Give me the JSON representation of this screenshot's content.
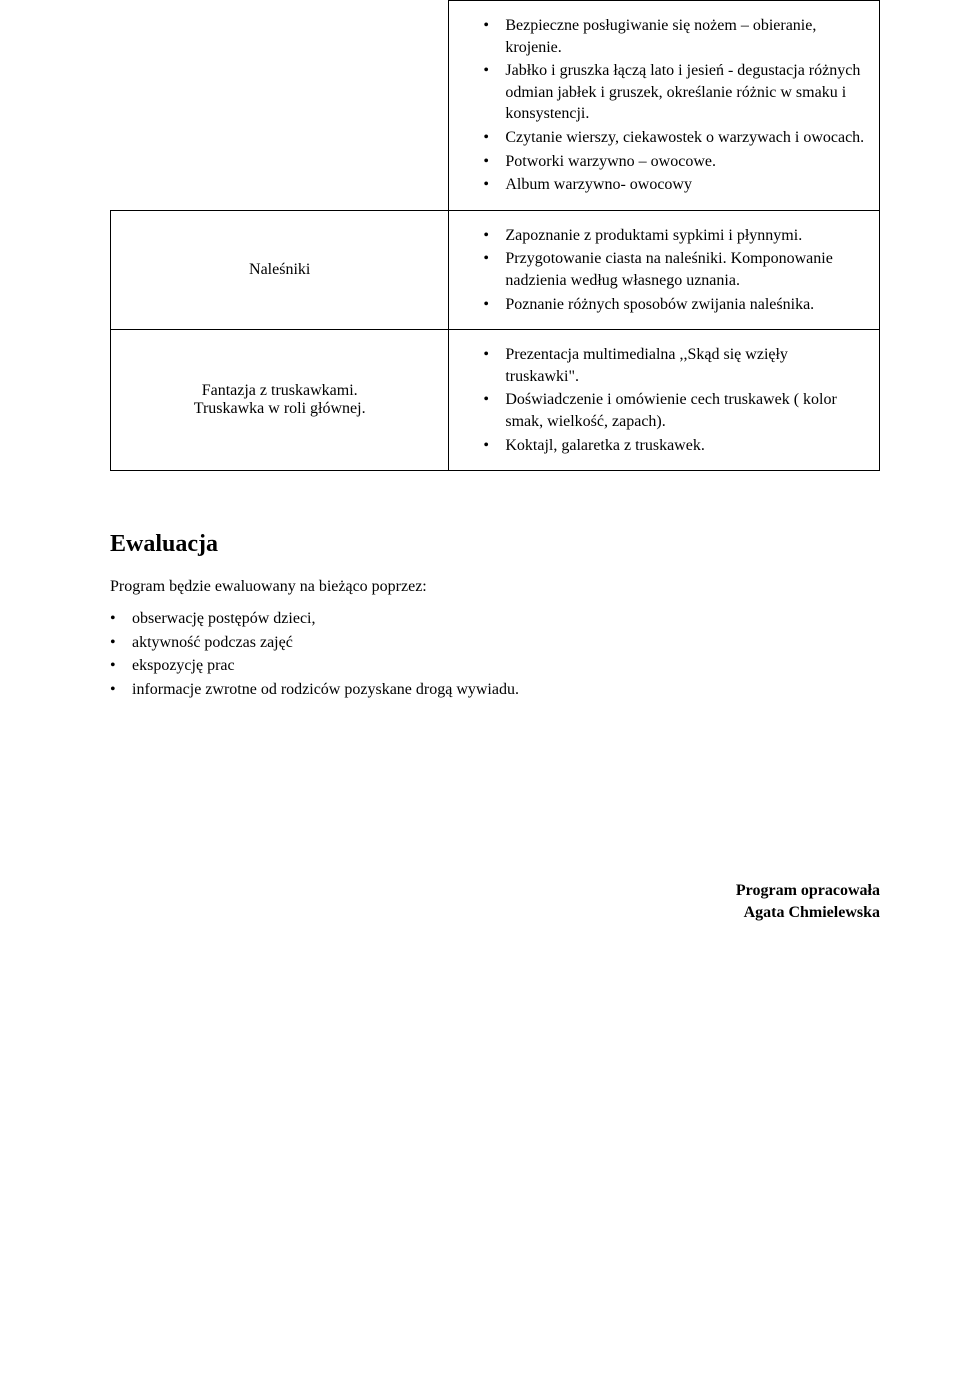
{
  "table": {
    "row0": {
      "items": [
        "Bezpieczne posługiwanie się nożem – obieranie, krojenie.",
        "Jabłko i gruszka łączą lato i jesień - degustacja różnych odmian jabłek i gruszek, określanie różnic w smaku i konsystencji.",
        "Czytanie wierszy, ciekawostek o warzywach i owocach.",
        "Potworki warzywno – owocowe.",
        "Album warzywno- owocowy"
      ]
    },
    "row1": {
      "left": "Naleśniki",
      "items": [
        "Zapoznanie z produktami sypkimi i płynnymi.",
        "Przygotowanie ciasta na naleśniki. Komponowanie nadzienia według własnego uznania.",
        "Poznanie różnych sposobów zwijania naleśnika."
      ]
    },
    "row2": {
      "left_line1": "Fantazja  z truskawkami.",
      "left_line2": "Truskawka w roli głównej.",
      "items": [
        "Prezentacja multimedialna ,,Skąd się wzięły truskawki\".",
        "Doświadczenie i omówienie cech truskawek ( kolor smak, wielkość, zapach).",
        "Koktajl, galaretka z truskawek."
      ]
    }
  },
  "section_heading": "Ewaluacja",
  "section_intro": "Program będzie ewaluowany na bieżąco poprzez:",
  "section_items": [
    "obserwację postępów dzieci,",
    "aktywność podczas zajęć",
    "ekspozycję prac",
    "informacje zwrotne od  rodziców pozyskane drogą wywiadu."
  ],
  "footer_line1": "Program opracowała",
  "footer_line2": "Agata Chmielewska"
}
